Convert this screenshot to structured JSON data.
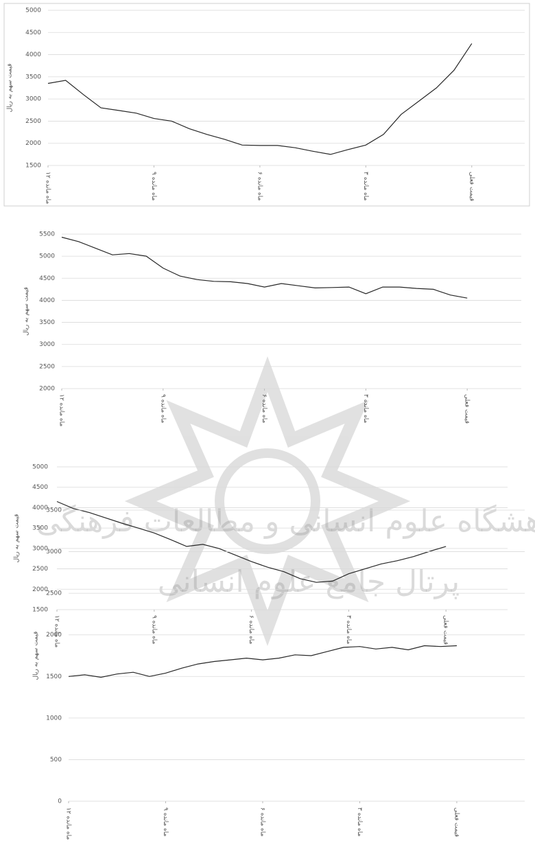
{
  "chart_data": [
    {
      "type": "line",
      "y_label": "قیمت سهم به ریال",
      "x": [
        -12,
        -11.5,
        -11,
        -10.5,
        -10,
        -9.5,
        -9,
        -8.5,
        -8,
        -7.5,
        -7,
        -6.5,
        -6,
        -5.5,
        -5,
        -4.5,
        -4,
        -3.5,
        -3,
        -2.5,
        -2,
        -1.5,
        -1,
        -0.5,
        0
      ],
      "series": [
        {
          "color": "#262626",
          "values": [
            3350,
            3420,
            3100,
            2800,
            2740,
            2680,
            2560,
            2500,
            2330,
            2200,
            2090,
            1960,
            1950,
            1950,
            1900,
            1820,
            1750,
            1860,
            1960,
            2200,
            2650,
            2950,
            3250,
            3650,
            4250
          ]
        }
      ],
      "xlim": [
        -12,
        1.5
      ],
      "xticks": [
        {
          "value": -12,
          "label": "۱۲ ماه مانده"
        },
        {
          "value": -9,
          "label": "۹ ماه مانده"
        },
        {
          "value": -6,
          "label": "۶ ماه مانده"
        },
        {
          "value": -3,
          "label": "۳ ماه مانده"
        },
        {
          "value": 0,
          "label": "قیمت فعلی"
        }
      ],
      "ylim": [
        1500,
        5000
      ],
      "yticks": [
        1500,
        2000,
        2500,
        3000,
        3500,
        4000,
        4500,
        5000
      ],
      "grid": true
    },
    {
      "type": "line",
      "y_label": "قیمت سهم به ریال",
      "x": [
        -12,
        -11.5,
        -11,
        -10.5,
        -10,
        -9.5,
        -9,
        -8.5,
        -8,
        -7.5,
        -7,
        -6.5,
        -6,
        -5.5,
        -5,
        -4.5,
        -4,
        -3.5,
        -3,
        -2.5,
        -2,
        -1.5,
        -1,
        -0.5,
        0
      ],
      "series": [
        {
          "color": "#262626",
          "values": [
            5430,
            5330,
            5180,
            5030,
            5060,
            5000,
            4730,
            4550,
            4470,
            4430,
            4420,
            4380,
            4300,
            4380,
            4330,
            4280,
            4290,
            4300,
            4150,
            4300,
            4300,
            4270,
            4250,
            4120,
            4050
          ]
        }
      ],
      "xlim": [
        -12,
        1.6
      ],
      "xticks": [
        {
          "value": -12,
          "label": "۱۲ ماه مانده"
        },
        {
          "value": -9,
          "label": "۹ ماه مانده"
        },
        {
          "value": -6,
          "label": "۶ ماه مانده"
        },
        {
          "value": -3,
          "label": "۳ ماه مانده"
        },
        {
          "value": 0,
          "label": "قیمت فعلی"
        }
      ],
      "ylim": [
        2000,
        5500
      ],
      "yticks": [
        2000,
        2500,
        3000,
        3500,
        4000,
        4500,
        5000,
        5500
      ],
      "grid": true
    },
    {
      "type": "line",
      "y_label": "قیمت سهم به ریال",
      "x": [
        -12,
        -11.5,
        -11,
        -10.5,
        -10,
        -9.5,
        -9,
        -8.5,
        -8,
        -7.5,
        -7,
        -6.5,
        -6,
        -5.5,
        -5,
        -4.5,
        -4,
        -3.5,
        -3,
        -2.5,
        -2,
        -1.5,
        -1,
        -0.5,
        0
      ],
      "series": [
        {
          "color": "#262626",
          "values": [
            4150,
            3980,
            3880,
            3750,
            3620,
            3500,
            3380,
            3220,
            3050,
            3100,
            3000,
            2840,
            2680,
            2540,
            2430,
            2260,
            2170,
            2200,
            2380,
            2500,
            2620,
            2700,
            2800,
            2930,
            3050
          ]
        }
      ],
      "xlim": [
        -12,
        1.9
      ],
      "xticks": [
        {
          "value": -12,
          "label": "۱۲ ماه مانده"
        },
        {
          "value": -9,
          "label": "۹ ماه مانده"
        },
        {
          "value": -6,
          "label": "۶ ماه مانده"
        },
        {
          "value": -3,
          "label": "۳ ماه مانده"
        },
        {
          "value": 0,
          "label": "قیمت فعلی"
        }
      ],
      "ylim": [
        1500,
        5000
      ],
      "yticks": [
        1500,
        2000,
        2500,
        3000,
        3500,
        4000,
        4500,
        5000
      ],
      "grid": true
    },
    {
      "type": "line",
      "y_label": "قیمت سهم به ریال",
      "x": [
        -12,
        -11.5,
        -11,
        -10.5,
        -10,
        -9.5,
        -9,
        -8.5,
        -8,
        -7.5,
        -7,
        -6.5,
        -6,
        -5.5,
        -5,
        -4.5,
        -4,
        -3.5,
        -3,
        -2.5,
        -2,
        -1.5,
        -1,
        -0.5,
        0
      ],
      "series": [
        {
          "color": "#262626",
          "values": [
            1500,
            1520,
            1490,
            1530,
            1550,
            1500,
            1540,
            1600,
            1650,
            1680,
            1700,
            1720,
            1700,
            1720,
            1760,
            1750,
            1800,
            1850,
            1860,
            1830,
            1850,
            1820,
            1870,
            1860,
            1870
          ]
        }
      ],
      "xlim": [
        -12,
        2.1
      ],
      "xticks": [
        {
          "value": -12,
          "label": "۱۲ ماه مانده"
        },
        {
          "value": -9,
          "label": "۹ ماه مانده"
        },
        {
          "value": -6,
          "label": "۶ ماه مانده"
        },
        {
          "value": -3,
          "label": "۳ ماه مانده"
        },
        {
          "value": 0,
          "label": "قیمت فعلی"
        }
      ],
      "ylim": [
        0,
        3500
      ],
      "yticks": [
        0,
        500,
        1000,
        1500,
        2000,
        2500,
        3000,
        3500
      ],
      "grid": true
    }
  ],
  "watermark": {
    "line1": "پژوهشگاه علوم انسانی و مطالعات فرهنگی",
    "line2": "پرتال جامع علوم انسانی"
  }
}
